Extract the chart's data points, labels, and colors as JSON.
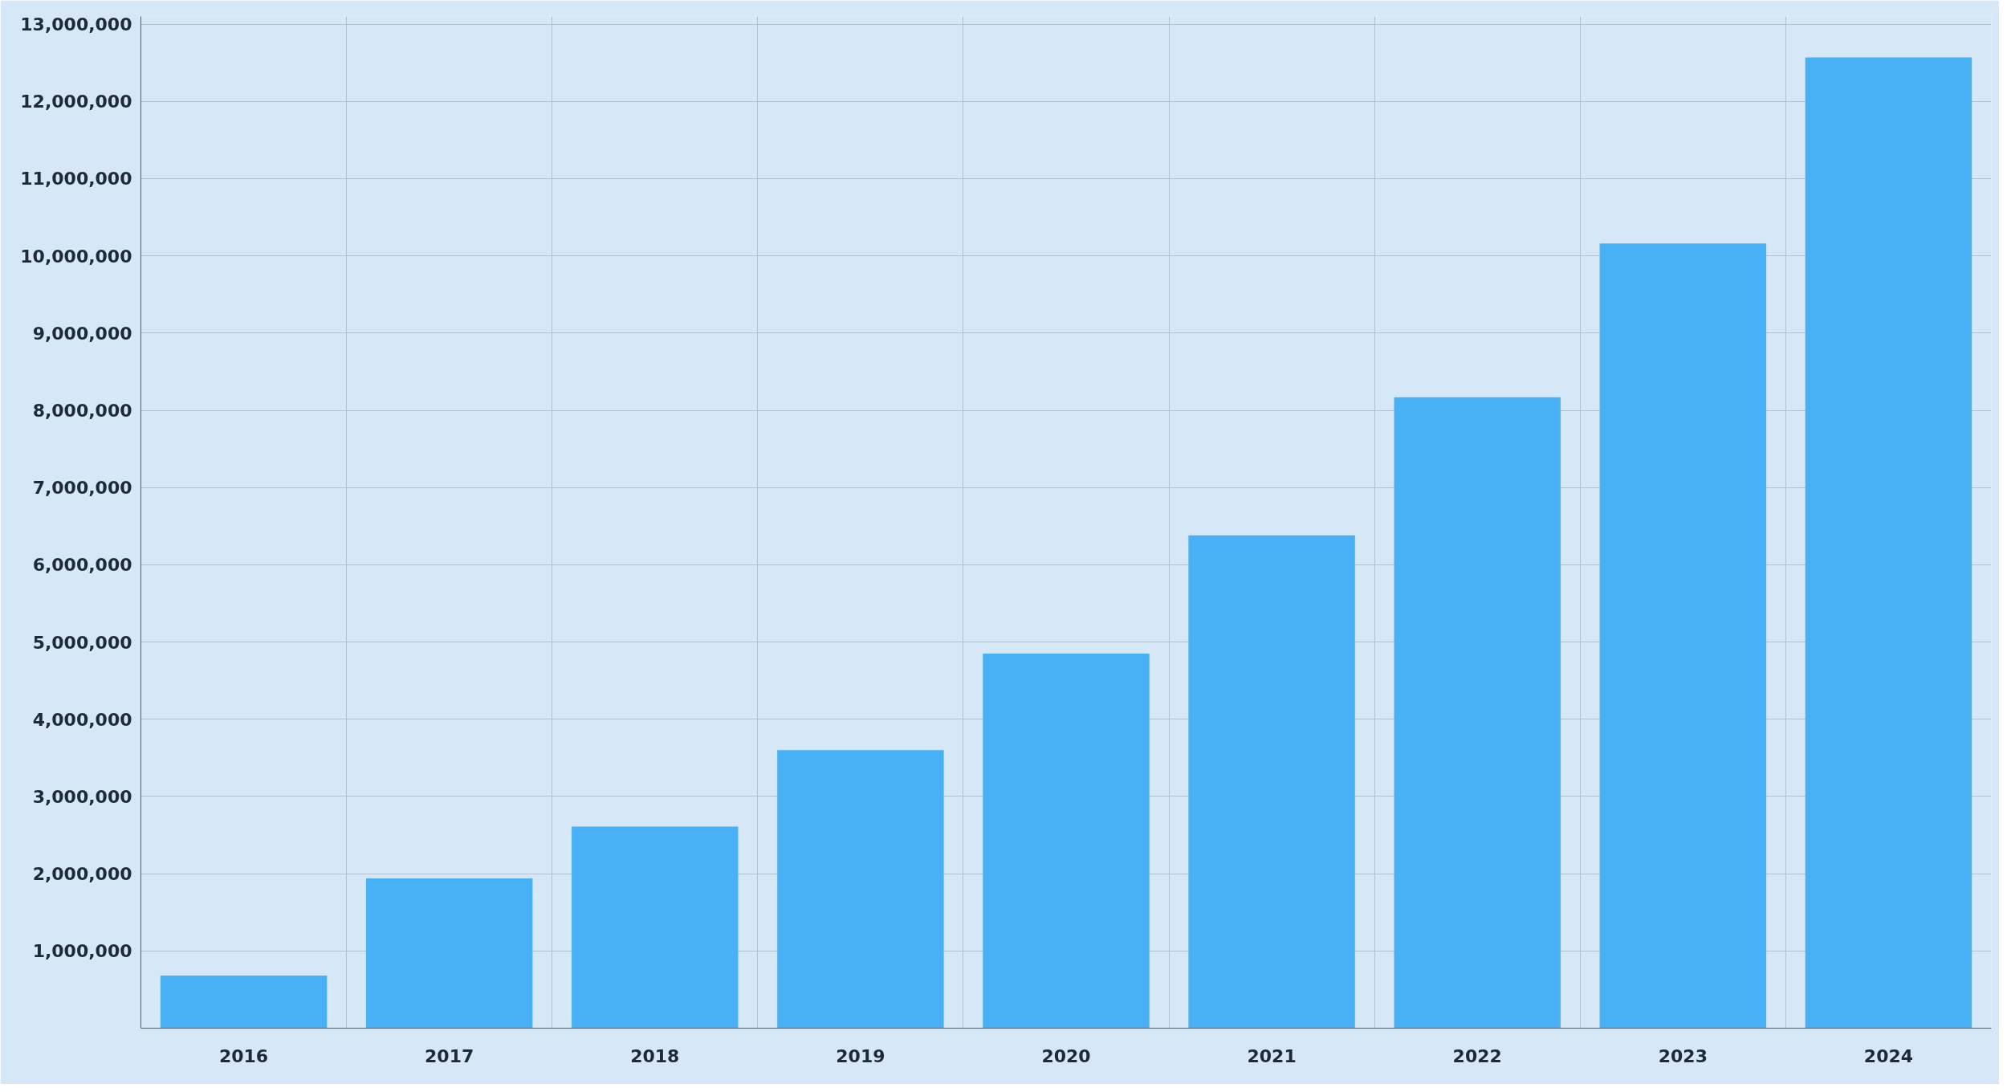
{
  "chart_data": {
    "type": "bar",
    "categories": [
      "2016",
      "2017",
      "2018",
      "2019",
      "2020",
      "2021",
      "2022",
      "2023",
      "2024"
    ],
    "values": [
      680000,
      1940000,
      2610000,
      3600000,
      4850000,
      6380000,
      8170000,
      10160000,
      12570000
    ],
    "color": "#48b0f5",
    "ylim": [
      0,
      13100000
    ],
    "yticks": [
      {
        "value": 1000000,
        "label": "1,000,000"
      },
      {
        "value": 2000000,
        "label": "2,000,000"
      },
      {
        "value": 3000000,
        "label": "3,000,000"
      },
      {
        "value": 4000000,
        "label": "4,000,000"
      },
      {
        "value": 5000000,
        "label": "5,000,000"
      },
      {
        "value": 6000000,
        "label": "6,000,000"
      },
      {
        "value": 7000000,
        "label": "7,000,000"
      },
      {
        "value": 8000000,
        "label": "8,000,000"
      },
      {
        "value": 9000000,
        "label": "9,000,000"
      },
      {
        "value": 10000000,
        "label": "10,000,000"
      },
      {
        "value": 11000000,
        "label": "11,000,000"
      },
      {
        "value": 12000000,
        "label": "12,000,000"
      },
      {
        "value": 13000000,
        "label": "13,000,000"
      }
    ],
    "grid": true
  }
}
